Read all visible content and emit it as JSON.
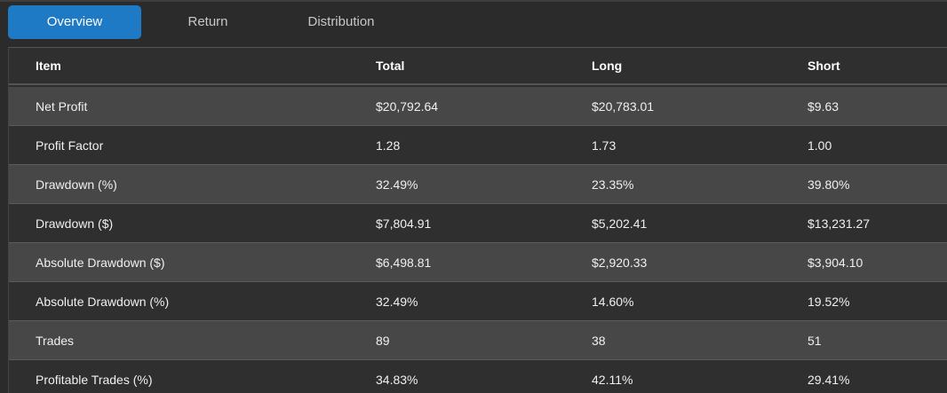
{
  "tabs": [
    {
      "label": "Overview",
      "active": true
    },
    {
      "label": "Return",
      "active": false
    },
    {
      "label": "Distribution",
      "active": false
    }
  ],
  "colors": {
    "accent": "#1f7ac5",
    "background": "#2b2b2b",
    "row_alt": "#474747",
    "row_plain": "#2f2f2f"
  },
  "table": {
    "columns": [
      "Item",
      "Total",
      "Long",
      "Short"
    ],
    "rows": [
      [
        "Net Profit",
        "$20,792.64",
        "$20,783.01",
        "$9.63"
      ],
      [
        "Profit Factor",
        "1.28",
        "1.73",
        "1.00"
      ],
      [
        "Drawdown (%)",
        "32.49%",
        "23.35%",
        "39.80%"
      ],
      [
        "Drawdown ($)",
        "$7,804.91",
        "$5,202.41",
        "$13,231.27"
      ],
      [
        "Absolute Drawdown ($)",
        "$6,498.81",
        "$2,920.33",
        "$3,904.10"
      ],
      [
        "Absolute Drawdown (%)",
        "32.49%",
        "14.60%",
        "19.52%"
      ],
      [
        "Trades",
        "89",
        "38",
        "51"
      ],
      [
        "Profitable Trades (%)",
        "34.83%",
        "42.11%",
        "29.41%"
      ]
    ]
  }
}
